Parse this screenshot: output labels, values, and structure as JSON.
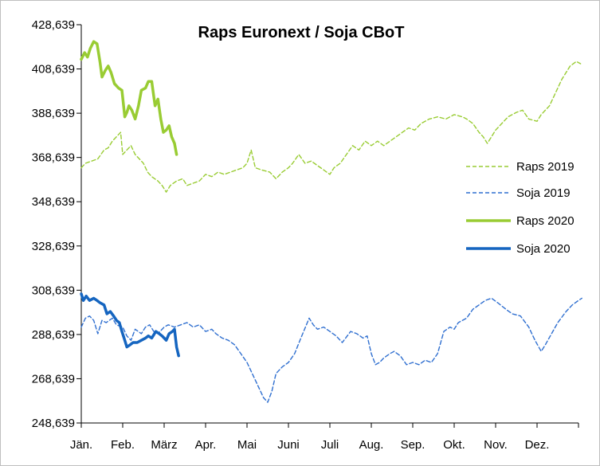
{
  "chart_data": {
    "type": "line",
    "title": "Raps Euronext / Soja CBoT",
    "xlabel": "",
    "ylabel": "",
    "ylim": [
      248.639,
      428.639
    ],
    "y_ticks": [
      248.639,
      268.639,
      288.639,
      308.639,
      328.639,
      348.639,
      368.639,
      388.639,
      408.639,
      428.639
    ],
    "y_tick_labels": [
      "248,639",
      "268,639",
      "288,639",
      "308,639",
      "328,639",
      "348,639",
      "368,639",
      "388,639",
      "408,639",
      "428,639"
    ],
    "x_domain": [
      0,
      12
    ],
    "x_unit": "month index (0 = start of January)",
    "x_ticks": [
      0,
      1,
      2,
      3,
      4,
      5,
      6,
      7,
      8,
      9,
      10,
      11
    ],
    "x_tick_labels": [
      "Jän.",
      "Feb.",
      "März",
      "Apr.",
      "Mai",
      "Juni",
      "Juli",
      "Aug.",
      "Sep.",
      "Okt.",
      "Nov.",
      "Dez."
    ],
    "grid": false,
    "legend_position": "right",
    "series": [
      {
        "name": "Raps 2019",
        "color": "#99cc33",
        "style": "dashed",
        "points": [
          [
            0.0,
            364
          ],
          [
            0.1,
            366
          ],
          [
            0.25,
            367
          ],
          [
            0.4,
            368
          ],
          [
            0.55,
            372
          ],
          [
            0.65,
            373
          ],
          [
            0.75,
            376
          ],
          [
            0.85,
            378
          ],
          [
            0.95,
            380
          ],
          [
            1.0,
            370
          ],
          [
            1.1,
            372
          ],
          [
            1.2,
            374
          ],
          [
            1.3,
            370
          ],
          [
            1.4,
            368
          ],
          [
            1.5,
            366
          ],
          [
            1.6,
            362
          ],
          [
            1.7,
            360
          ],
          [
            1.85,
            358
          ],
          [
            1.95,
            356
          ],
          [
            2.05,
            353
          ],
          [
            2.15,
            356
          ],
          [
            2.3,
            358
          ],
          [
            2.45,
            359
          ],
          [
            2.55,
            356
          ],
          [
            2.7,
            357
          ],
          [
            2.85,
            358
          ],
          [
            3.0,
            361
          ],
          [
            3.15,
            360
          ],
          [
            3.3,
            362
          ],
          [
            3.45,
            361
          ],
          [
            3.6,
            362
          ],
          [
            3.75,
            363
          ],
          [
            3.9,
            364
          ],
          [
            4.0,
            366
          ],
          [
            4.1,
            372
          ],
          [
            4.2,
            364
          ],
          [
            4.35,
            363
          ],
          [
            4.55,
            362
          ],
          [
            4.7,
            359
          ],
          [
            4.85,
            362
          ],
          [
            5.0,
            364
          ],
          [
            5.1,
            366
          ],
          [
            5.25,
            370
          ],
          [
            5.4,
            366
          ],
          [
            5.55,
            367
          ],
          [
            5.7,
            365
          ],
          [
            5.85,
            363
          ],
          [
            6.0,
            361
          ],
          [
            6.1,
            364
          ],
          [
            6.25,
            366
          ],
          [
            6.4,
            370
          ],
          [
            6.55,
            374
          ],
          [
            6.7,
            372
          ],
          [
            6.85,
            376
          ],
          [
            7.0,
            374
          ],
          [
            7.15,
            376
          ],
          [
            7.3,
            374
          ],
          [
            7.45,
            376
          ],
          [
            7.6,
            378
          ],
          [
            7.75,
            380
          ],
          [
            7.9,
            382
          ],
          [
            8.05,
            381
          ],
          [
            8.2,
            384
          ],
          [
            8.4,
            386
          ],
          [
            8.6,
            387
          ],
          [
            8.8,
            386
          ],
          [
            9.0,
            388
          ],
          [
            9.2,
            387
          ],
          [
            9.3,
            386
          ],
          [
            9.45,
            384
          ],
          [
            9.6,
            380
          ],
          [
            9.7,
            378
          ],
          [
            9.8,
            375
          ],
          [
            9.9,
            378
          ],
          [
            10.0,
            381
          ],
          [
            10.15,
            384
          ],
          [
            10.3,
            387
          ],
          [
            10.5,
            389
          ],
          [
            10.65,
            390
          ],
          [
            10.8,
            386
          ],
          [
            11.0,
            385
          ],
          [
            11.1,
            388
          ],
          [
            11.3,
            392
          ],
          [
            11.45,
            398
          ],
          [
            11.6,
            404
          ],
          [
            11.8,
            410
          ],
          [
            11.95,
            412
          ],
          [
            12.05,
            411
          ]
        ]
      },
      {
        "name": "Soja 2019",
        "color": "#2f6fd0",
        "style": "dashed",
        "points": [
          [
            0.0,
            292
          ],
          [
            0.1,
            296
          ],
          [
            0.2,
            297
          ],
          [
            0.3,
            295
          ],
          [
            0.4,
            289
          ],
          [
            0.5,
            295
          ],
          [
            0.6,
            294
          ],
          [
            0.75,
            296
          ],
          [
            0.85,
            293
          ],
          [
            1.0,
            292
          ],
          [
            1.1,
            288
          ],
          [
            1.2,
            286
          ],
          [
            1.3,
            291
          ],
          [
            1.45,
            289
          ],
          [
            1.55,
            292
          ],
          [
            1.65,
            293
          ],
          [
            1.75,
            290
          ],
          [
            1.85,
            289
          ],
          [
            2.0,
            292
          ],
          [
            2.1,
            293
          ],
          [
            2.25,
            292
          ],
          [
            2.4,
            293
          ],
          [
            2.55,
            294
          ],
          [
            2.7,
            292
          ],
          [
            2.85,
            293
          ],
          [
            3.0,
            290
          ],
          [
            3.15,
            291
          ],
          [
            3.25,
            289
          ],
          [
            3.4,
            287
          ],
          [
            3.55,
            286
          ],
          [
            3.7,
            284
          ],
          [
            3.85,
            280
          ],
          [
            4.0,
            276
          ],
          [
            4.1,
            272
          ],
          [
            4.2,
            268
          ],
          [
            4.3,
            264
          ],
          [
            4.4,
            260
          ],
          [
            4.5,
            258
          ],
          [
            4.6,
            263
          ],
          [
            4.7,
            271
          ],
          [
            4.85,
            274
          ],
          [
            5.0,
            276
          ],
          [
            5.15,
            280
          ],
          [
            5.3,
            287
          ],
          [
            5.5,
            296
          ],
          [
            5.6,
            293
          ],
          [
            5.7,
            291
          ],
          [
            5.85,
            292
          ],
          [
            6.0,
            290
          ],
          [
            6.15,
            288
          ],
          [
            6.3,
            285
          ],
          [
            6.5,
            290
          ],
          [
            6.65,
            289
          ],
          [
            6.8,
            287
          ],
          [
            6.9,
            288
          ],
          [
            7.0,
            280
          ],
          [
            7.1,
            275
          ],
          [
            7.2,
            276
          ],
          [
            7.3,
            278
          ],
          [
            7.45,
            280
          ],
          [
            7.55,
            281
          ],
          [
            7.7,
            279
          ],
          [
            7.85,
            275
          ],
          [
            8.0,
            276
          ],
          [
            8.15,
            275
          ],
          [
            8.3,
            277
          ],
          [
            8.45,
            276
          ],
          [
            8.6,
            280
          ],
          [
            8.75,
            290
          ],
          [
            8.9,
            292
          ],
          [
            9.0,
            291
          ],
          [
            9.1,
            294
          ],
          [
            9.3,
            296
          ],
          [
            9.45,
            300
          ],
          [
            9.6,
            302
          ],
          [
            9.75,
            304
          ],
          [
            9.9,
            305
          ],
          [
            10.05,
            303
          ],
          [
            10.25,
            300
          ],
          [
            10.4,
            298
          ],
          [
            10.6,
            297
          ],
          [
            10.8,
            292
          ],
          [
            10.95,
            286
          ],
          [
            11.1,
            281
          ],
          [
            11.2,
            284
          ],
          [
            11.35,
            289
          ],
          [
            11.5,
            294
          ],
          [
            11.7,
            299
          ],
          [
            11.85,
            302
          ],
          [
            12.0,
            304
          ],
          [
            12.08,
            305
          ]
        ]
      },
      {
        "name": "Raps 2020",
        "color": "#99cc33",
        "style": "solid",
        "points": [
          [
            0.0,
            413
          ],
          [
            0.08,
            416
          ],
          [
            0.15,
            414
          ],
          [
            0.22,
            418
          ],
          [
            0.3,
            421
          ],
          [
            0.38,
            420
          ],
          [
            0.45,
            412
          ],
          [
            0.5,
            405
          ],
          [
            0.58,
            408
          ],
          [
            0.65,
            410
          ],
          [
            0.72,
            407
          ],
          [
            0.8,
            402
          ],
          [
            0.9,
            400
          ],
          [
            0.98,
            399
          ],
          [
            1.05,
            387
          ],
          [
            1.1,
            389
          ],
          [
            1.15,
            392
          ],
          [
            1.22,
            390
          ],
          [
            1.3,
            386
          ],
          [
            1.38,
            392
          ],
          [
            1.45,
            399
          ],
          [
            1.55,
            400
          ],
          [
            1.62,
            403
          ],
          [
            1.7,
            403
          ],
          [
            1.78,
            392
          ],
          [
            1.85,
            395
          ],
          [
            1.92,
            386
          ],
          [
            1.98,
            380
          ],
          [
            2.05,
            381
          ],
          [
            2.12,
            383
          ],
          [
            2.18,
            378
          ],
          [
            2.25,
            375
          ],
          [
            2.3,
            370
          ]
        ]
      },
      {
        "name": "Soja 2020",
        "color": "#1565c0",
        "style": "solid",
        "points": [
          [
            0.0,
            307
          ],
          [
            0.05,
            304
          ],
          [
            0.12,
            306
          ],
          [
            0.2,
            304
          ],
          [
            0.3,
            305
          ],
          [
            0.38,
            304
          ],
          [
            0.45,
            303
          ],
          [
            0.55,
            302
          ],
          [
            0.62,
            298
          ],
          [
            0.7,
            299
          ],
          [
            0.78,
            297
          ],
          [
            0.85,
            295
          ],
          [
            0.92,
            294
          ],
          [
            0.98,
            290
          ],
          [
            1.05,
            286
          ],
          [
            1.1,
            283
          ],
          [
            1.18,
            284
          ],
          [
            1.25,
            285
          ],
          [
            1.35,
            285
          ],
          [
            1.45,
            286
          ],
          [
            1.55,
            287
          ],
          [
            1.62,
            288
          ],
          [
            1.7,
            287
          ],
          [
            1.8,
            290
          ],
          [
            1.88,
            289
          ],
          [
            1.95,
            288
          ],
          [
            2.0,
            287
          ],
          [
            2.05,
            286
          ],
          [
            2.12,
            289
          ],
          [
            2.2,
            290
          ],
          [
            2.25,
            291
          ],
          [
            2.3,
            283
          ],
          [
            2.35,
            279
          ]
        ]
      }
    ]
  }
}
